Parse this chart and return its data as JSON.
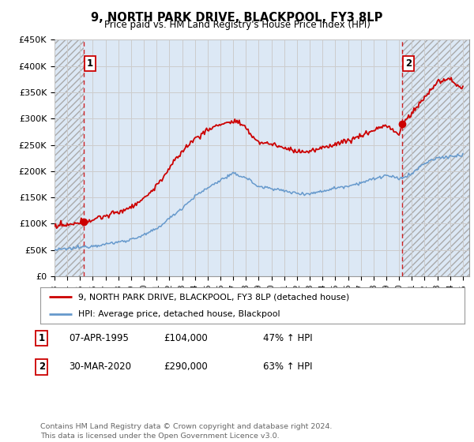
{
  "title": "9, NORTH PARK DRIVE, BLACKPOOL, FY3 8LP",
  "subtitle": "Price paid vs. HM Land Registry's House Price Index (HPI)",
  "ylim": [
    0,
    450000
  ],
  "yticks": [
    0,
    50000,
    100000,
    150000,
    200000,
    250000,
    300000,
    350000,
    400000,
    450000
  ],
  "ytick_labels": [
    "£0",
    "£50K",
    "£100K",
    "£150K",
    "£200K",
    "£250K",
    "£300K",
    "£350K",
    "£400K",
    "£450K"
  ],
  "xlim_start": 1993.0,
  "xlim_end": 2025.5,
  "xticks": [
    1993,
    1994,
    1995,
    1996,
    1997,
    1998,
    1999,
    2000,
    2001,
    2002,
    2003,
    2004,
    2005,
    2006,
    2007,
    2008,
    2009,
    2010,
    2011,
    2012,
    2013,
    2014,
    2015,
    2016,
    2017,
    2018,
    2019,
    2020,
    2021,
    2022,
    2023,
    2024,
    2025
  ],
  "transaction1_x": 1995.27,
  "transaction1_y": 104000,
  "transaction2_x": 2020.24,
  "transaction2_y": 290000,
  "red_line_color": "#cc0000",
  "blue_line_color": "#6699cc",
  "marker_color": "#cc0000",
  "grid_color": "#cccccc",
  "bg_color": "#dce8f5",
  "hatch_bg": "#dce8f5",
  "legend_entry1": "9, NORTH PARK DRIVE, BLACKPOOL, FY3 8LP (detached house)",
  "legend_entry2": "HPI: Average price, detached house, Blackpool",
  "footer": "Contains HM Land Registry data © Crown copyright and database right 2024.\nThis data is licensed under the Open Government Licence v3.0.",
  "table_rows": [
    [
      "1",
      "07-APR-1995",
      "£104,000",
      "47% ↑ HPI"
    ],
    [
      "2",
      "30-MAR-2020",
      "£290,000",
      "63% ↑ HPI"
    ]
  ]
}
